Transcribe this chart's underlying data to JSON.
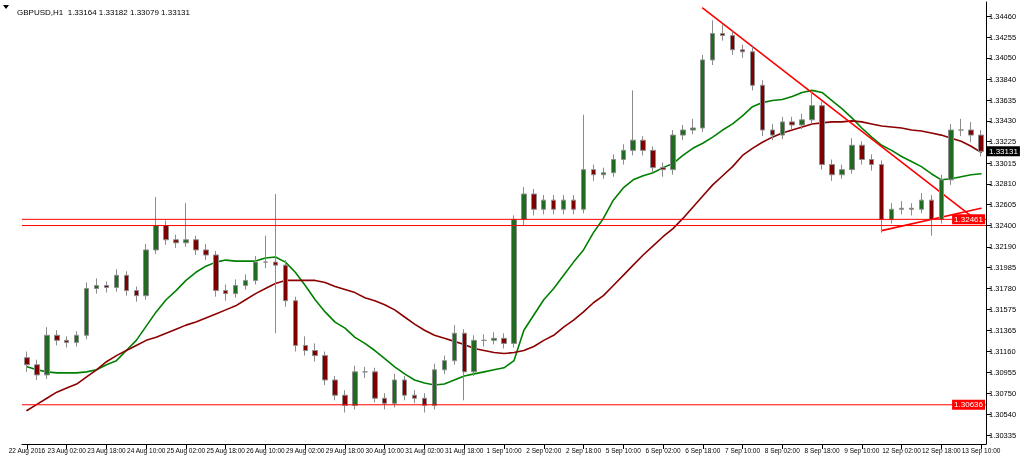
{
  "chart_data": {
    "type": "candlestick",
    "title": "GBPUSD,H1  1.33164 1.33182 1.33079 1.33131",
    "categories": [
      "22 Aug 2016",
      null,
      null,
      null,
      "23 Aug 02:00",
      null,
      null,
      null,
      "23 Aug 18:00",
      null,
      null,
      null,
      "24 Aug 10:00",
      null,
      null,
      null,
      "25 Aug 02:00",
      null,
      null,
      null,
      "25 Aug 18:00",
      null,
      null,
      null,
      "26 Aug 10:00",
      null,
      null,
      null,
      "29 Aug 02:00",
      null,
      null,
      null,
      "29 Aug 18:00",
      null,
      null,
      null,
      "30 Aug 10:00",
      null,
      null,
      null,
      "31 Aug 02:00",
      null,
      null,
      null,
      "31 Aug 18:00",
      null,
      null,
      null,
      "1 Sep 10:00",
      null,
      null,
      null,
      "2 Sep 02:00",
      null,
      null,
      null,
      "2 Sep 18:00",
      null,
      null,
      null,
      "5 Sep 10:00",
      null,
      null,
      null,
      "6 Sep 02:00",
      null,
      null,
      null,
      "6 Sep 18:00",
      null,
      null,
      null,
      "7 Sep 10:00",
      null,
      null,
      null,
      "8 Sep 02:00",
      null,
      null,
      null,
      "8 Sep 18:00",
      null,
      null,
      null,
      "9 Sep 10:00",
      null,
      null,
      null,
      "12 Sep 02:00",
      null,
      null,
      null,
      "12 Sep 18:00",
      null,
      null,
      null,
      "13 Sep 10:00"
    ],
    "ohlc": [
      [
        1.311,
        1.3116,
        1.3096,
        1.3103
      ],
      [
        1.3103,
        1.3108,
        1.3088,
        1.3093
      ],
      [
        1.3093,
        1.314,
        1.3089,
        1.3132
      ],
      [
        1.3132,
        1.3137,
        1.3122,
        1.3127
      ],
      [
        1.3127,
        1.3131,
        1.312,
        1.3125
      ],
      [
        1.3125,
        1.3136,
        1.3121,
        1.3132
      ],
      [
        1.3132,
        1.3184,
        1.3128,
        1.3178
      ],
      [
        1.3178,
        1.3188,
        1.3173,
        1.3181
      ],
      [
        1.3181,
        1.3185,
        1.3174,
        1.3179
      ],
      [
        1.3179,
        1.3197,
        1.3175,
        1.3191
      ],
      [
        1.3191,
        1.3195,
        1.3171,
        1.3176
      ],
      [
        1.3176,
        1.318,
        1.3165,
        1.3171
      ],
      [
        1.3171,
        1.3222,
        1.3167,
        1.3216
      ],
      [
        1.3216,
        1.3268,
        1.3212,
        1.324
      ],
      [
        1.324,
        1.3245,
        1.3221,
        1.3226
      ],
      [
        1.3226,
        1.3231,
        1.3218,
        1.3223
      ],
      [
        1.3223,
        1.3262,
        1.3219,
        1.3226
      ],
      [
        1.3226,
        1.323,
        1.3211,
        1.3216
      ],
      [
        1.3216,
        1.3222,
        1.3206,
        1.3211
      ],
      [
        1.3211,
        1.3215,
        1.317,
        1.3176
      ],
      [
        1.3176,
        1.3182,
        1.3166,
        1.3173
      ],
      [
        1.3173,
        1.3187,
        1.3169,
        1.3181
      ],
      [
        1.3181,
        1.3192,
        1.3177,
        1.3186
      ],
      [
        1.3186,
        1.321,
        1.3182,
        1.3204
      ],
      [
        1.3204,
        1.323,
        1.3198,
        1.3204
      ],
      [
        1.3204,
        1.3271,
        1.3134,
        1.3201
      ],
      [
        1.3201,
        1.3206,
        1.316,
        1.3166
      ],
      [
        1.3166,
        1.317,
        1.3116,
        1.3122
      ],
      [
        1.3122,
        1.3131,
        1.3112,
        1.3117
      ],
      [
        1.3117,
        1.3124,
        1.3106,
        1.3112
      ],
      [
        1.3112,
        1.3116,
        1.3083,
        1.3088
      ],
      [
        1.3088,
        1.3092,
        1.3068,
        1.3073
      ],
      [
        1.3073,
        1.3078,
        1.3056,
        1.3063
      ],
      [
        1.3063,
        1.3102,
        1.3059,
        1.3096
      ],
      [
        1.3096,
        1.3101,
        1.309,
        1.3096
      ],
      [
        1.3096,
        1.31,
        1.3066,
        1.307
      ],
      [
        1.307,
        1.3075,
        1.3059,
        1.3065
      ],
      [
        1.3065,
        1.3094,
        1.3061,
        1.3088
      ],
      [
        1.3088,
        1.3092,
        1.3068,
        1.3073
      ],
      [
        1.3073,
        1.3078,
        1.3065,
        1.307
      ],
      [
        1.307,
        1.3075,
        1.3056,
        1.3063
      ],
      [
        1.3063,
        1.3104,
        1.3059,
        1.3098
      ],
      [
        1.3098,
        1.3112,
        1.3094,
        1.3107
      ],
      [
        1.3107,
        1.3142,
        1.3103,
        1.3134
      ],
      [
        1.3134,
        1.3138,
        1.3068,
        1.3096
      ],
      [
        1.3096,
        1.3132,
        1.3092,
        1.3127
      ],
      [
        1.3127,
        1.3133,
        1.3121,
        1.3127
      ],
      [
        1.3127,
        1.3135,
        1.3123,
        1.3129
      ],
      [
        1.3129,
        1.3134,
        1.3119,
        1.3124
      ],
      [
        1.3124,
        1.325,
        1.312,
        1.3246
      ],
      [
        1.3246,
        1.3278,
        1.324,
        1.3271
      ],
      [
        1.3271,
        1.3276,
        1.325,
        1.3256
      ],
      [
        1.3256,
        1.327,
        1.3251,
        1.3265
      ],
      [
        1.3265,
        1.327,
        1.3251,
        1.3256
      ],
      [
        1.3256,
        1.327,
        1.3251,
        1.3265
      ],
      [
        1.3265,
        1.327,
        1.3251,
        1.3256
      ],
      [
        1.3256,
        1.3349,
        1.3252,
        1.3295
      ],
      [
        1.3295,
        1.33,
        1.3284,
        1.329
      ],
      [
        1.329,
        1.3297,
        1.3286,
        1.3292
      ],
      [
        1.3292,
        1.331,
        1.3288,
        1.3305
      ],
      [
        1.3305,
        1.332,
        1.33,
        1.3314
      ],
      [
        1.3314,
        1.3373,
        1.3309,
        1.3324
      ],
      [
        1.3324,
        1.3328,
        1.3309,
        1.3314
      ],
      [
        1.3314,
        1.3318,
        1.3292,
        1.3297
      ],
      [
        1.3297,
        1.3302,
        1.3288,
        1.3295
      ],
      [
        1.3295,
        1.3334,
        1.329,
        1.3329
      ],
      [
        1.3329,
        1.3339,
        1.3324,
        1.3334
      ],
      [
        1.3334,
        1.3345,
        1.333,
        1.3336
      ],
      [
        1.3336,
        1.3408,
        1.3332,
        1.3403
      ],
      [
        1.3403,
        1.3442,
        1.3398,
        1.3429
      ],
      [
        1.3429,
        1.3438,
        1.3422,
        1.3427
      ],
      [
        1.3427,
        1.3431,
        1.3408,
        1.3413
      ],
      [
        1.3413,
        1.3418,
        1.3405,
        1.3411
      ],
      [
        1.3411,
        1.3416,
        1.3373,
        1.3378
      ],
      [
        1.3378,
        1.3383,
        1.3328,
        1.3334
      ],
      [
        1.3334,
        1.334,
        1.3324,
        1.3329
      ],
      [
        1.3329,
        1.3347,
        1.3325,
        1.3342
      ],
      [
        1.3342,
        1.3347,
        1.3334,
        1.3339
      ],
      [
        1.3339,
        1.335,
        1.3335,
        1.3344
      ],
      [
        1.3344,
        1.3372,
        1.334,
        1.3358
      ],
      [
        1.3358,
        1.3362,
        1.3295,
        1.33
      ],
      [
        1.33,
        1.3305,
        1.3284,
        1.329
      ],
      [
        1.329,
        1.33,
        1.3286,
        1.3295
      ],
      [
        1.3295,
        1.3326,
        1.3291,
        1.3319
      ],
      [
        1.3319,
        1.3323,
        1.33,
        1.3305
      ],
      [
        1.3305,
        1.331,
        1.3294,
        1.33
      ],
      [
        1.33,
        1.3304,
        1.3233,
        1.3246
      ],
      [
        1.3246,
        1.3262,
        1.3242,
        1.3256
      ],
      [
        1.3256,
        1.3264,
        1.3251,
        1.3257
      ],
      [
        1.3257,
        1.3262,
        1.325,
        1.3256
      ],
      [
        1.3256,
        1.3272,
        1.3252,
        1.3265
      ],
      [
        1.3265,
        1.327,
        1.323,
        1.3246
      ],
      [
        1.3246,
        1.329,
        1.3242,
        1.3285
      ],
      [
        1.3285,
        1.334,
        1.328,
        1.3334
      ],
      [
        1.3334,
        1.3345,
        1.3328,
        1.3334
      ],
      [
        1.3334,
        1.3342,
        1.3322,
        1.3329
      ],
      [
        1.3329,
        1.3334,
        1.3308,
        1.3313
      ]
    ],
    "series": [
      {
        "type": "line",
        "color": "#008000",
        "values": [
          1.3101,
          1.3098,
          1.3096,
          1.3095,
          1.3095,
          1.3095,
          1.3096,
          1.3098,
          1.3103,
          1.3107,
          1.3117,
          1.3127,
          1.3141,
          1.3155,
          1.3167,
          1.3176,
          1.3186,
          1.3194,
          1.32,
          1.3204,
          1.3206,
          1.3205,
          1.3205,
          1.3205,
          1.3208,
          1.3209,
          1.3204,
          1.3194,
          1.3181,
          1.3167,
          1.3155,
          1.3145,
          1.3139,
          1.313,
          1.3124,
          1.3117,
          1.3109,
          1.3101,
          1.3094,
          1.3088,
          1.3085,
          1.3083,
          1.3084,
          1.3088,
          1.3092,
          1.3094,
          1.3096,
          1.3098,
          1.31,
          1.3107,
          1.3137,
          1.3152,
          1.3167,
          1.3178,
          1.3191,
          1.3204,
          1.3216,
          1.3233,
          1.3247,
          1.3265,
          1.3277,
          1.3285,
          1.3289,
          1.3292,
          1.3297,
          1.3301,
          1.3309,
          1.3316,
          1.3321,
          1.3327,
          1.3334,
          1.334,
          1.3348,
          1.3357,
          1.3361,
          1.3363,
          1.3364,
          1.3367,
          1.3371,
          1.3373,
          1.3371,
          1.3363,
          1.3355,
          1.3346,
          1.3336,
          1.3327,
          1.3319,
          1.3314,
          1.3308,
          1.3303,
          1.3298,
          1.3291,
          1.3285,
          1.3286,
          1.3288,
          1.329,
          1.3291
        ]
      },
      {
        "type": "line",
        "color": "#8b0000",
        "values": [
          1.3058,
          1.3064,
          1.307,
          1.3076,
          1.308,
          1.3084,
          1.3091,
          1.3098,
          1.3106,
          1.3112,
          1.3117,
          1.3122,
          1.3127,
          1.313,
          1.3134,
          1.3138,
          1.3142,
          1.3145,
          1.3149,
          1.3153,
          1.3157,
          1.3161,
          1.3167,
          1.3173,
          1.3178,
          1.3183,
          1.3186,
          1.3186,
          1.3186,
          1.3186,
          1.3184,
          1.318,
          1.3177,
          1.3174,
          1.3169,
          1.3166,
          1.3162,
          1.3157,
          1.315,
          1.3143,
          1.3137,
          1.3132,
          1.3129,
          1.3126,
          1.3123,
          1.3119,
          1.3117,
          1.3115,
          1.3114,
          1.3115,
          1.3117,
          1.3121,
          1.3127,
          1.3132,
          1.314,
          1.3147,
          1.3155,
          1.3164,
          1.3171,
          1.3181,
          1.3191,
          1.3201,
          1.3211,
          1.322,
          1.3229,
          1.3237,
          1.3247,
          1.3258,
          1.3269,
          1.328,
          1.3289,
          1.3298,
          1.3309,
          1.3316,
          1.3322,
          1.3327,
          1.3331,
          1.3334,
          1.3337,
          1.334,
          1.3341,
          1.3342,
          1.3342,
          1.3343,
          1.3342,
          1.334,
          1.3338,
          1.3337,
          1.3336,
          1.3334,
          1.3333,
          1.3331,
          1.3329,
          1.3326,
          1.3323,
          1.3318,
          1.3312
        ]
      },
      {
        "type": "line",
        "color": "#ff0000",
        "values": [
          null,
          null,
          null,
          null,
          null,
          null,
          null,
          null,
          null,
          null,
          null,
          null,
          null,
          null,
          null,
          null,
          null,
          null,
          null,
          null,
          null,
          null,
          null,
          null,
          null,
          null,
          null,
          null,
          null,
          null,
          null,
          null,
          null,
          null,
          null,
          null,
          null,
          null,
          null,
          null,
          null,
          null,
          null,
          null,
          null,
          null,
          null,
          null,
          null,
          null,
          null,
          null,
          null,
          null,
          null,
          null,
          null,
          null,
          null,
          null,
          null,
          null,
          null,
          null,
          null,
          null,
          null,
          null,
          1.3454,
          null,
          null,
          null,
          null,
          null,
          null,
          null,
          null,
          null,
          null,
          null,
          null,
          null,
          null,
          null,
          null,
          null,
          null,
          null,
          null,
          null,
          null,
          null,
          null,
          null,
          null,
          null,
          1.3242
        ]
      },
      {
        "type": "line",
        "color": "#ff0000",
        "values": [
          null,
          null,
          null,
          null,
          null,
          null,
          null,
          null,
          null,
          null,
          null,
          null,
          null,
          null,
          null,
          null,
          null,
          null,
          null,
          null,
          null,
          null,
          null,
          null,
          null,
          null,
          null,
          null,
          null,
          null,
          null,
          null,
          null,
          null,
          null,
          null,
          null,
          null,
          null,
          null,
          null,
          null,
          null,
          null,
          null,
          null,
          null,
          null,
          null,
          null,
          null,
          null,
          null,
          null,
          null,
          null,
          null,
          null,
          null,
          null,
          null,
          null,
          null,
          null,
          null,
          null,
          null,
          null,
          null,
          null,
          null,
          null,
          null,
          null,
          null,
          null,
          null,
          null,
          null,
          null,
          null,
          null,
          null,
          null,
          null,
          null,
          1.3235,
          null,
          null,
          null,
          null,
          null,
          null,
          null,
          null,
          null,
          1.3257
        ]
      }
    ],
    "ylim": [
      1.3025,
      1.346
    ],
    "yticks": [
      {
        "value": 1.3446,
        "label": "1.34460"
      },
      {
        "value": 1.34255,
        "label": "1.34255"
      },
      {
        "value": 1.3405,
        "label": "1.34050"
      },
      {
        "value": 1.3384,
        "label": "1.33840"
      },
      {
        "value": 1.33635,
        "label": "1.33635"
      },
      {
        "value": 1.3343,
        "label": "1.33430"
      },
      {
        "value": 1.33225,
        "label": "1.33225"
      },
      {
        "value": 1.33015,
        "label": "1.33015"
      },
      {
        "value": 1.3281,
        "label": "1.32810"
      },
      {
        "value": 1.32605,
        "label": "1.32605"
      },
      {
        "value": 1.324,
        "label": "1.32400"
      },
      {
        "value": 1.3219,
        "label": "1.32190"
      },
      {
        "value": 1.31985,
        "label": "1.31985"
      },
      {
        "value": 1.3178,
        "label": "1.31780"
      },
      {
        "value": 1.31575,
        "label": "1.31575"
      },
      {
        "value": 1.31365,
        "label": "1.31365"
      },
      {
        "value": 1.3116,
        "label": "1.31160"
      },
      {
        "value": 1.30955,
        "label": "1.30955"
      },
      {
        "value": 1.3075,
        "label": "1.30750"
      },
      {
        "value": 1.3054,
        "label": "1.30540"
      },
      {
        "value": 1.30335,
        "label": "1.30335"
      }
    ],
    "ref_lines": [
      {
        "axis": "y",
        "value": 1.32461,
        "label": "1.32461",
        "color": "#ff0000"
      },
      {
        "axis": "y",
        "value": 1.324,
        "label": null,
        "color": "#ff0000"
      },
      {
        "axis": "y",
        "value": 1.30636,
        "label": "1.30636",
        "color": "#ff0000"
      }
    ],
    "annotations": [
      {
        "text": "1.33131",
        "y": 1.33131
      }
    ],
    "grid": false,
    "marker": "none",
    "line_style": "solid"
  }
}
